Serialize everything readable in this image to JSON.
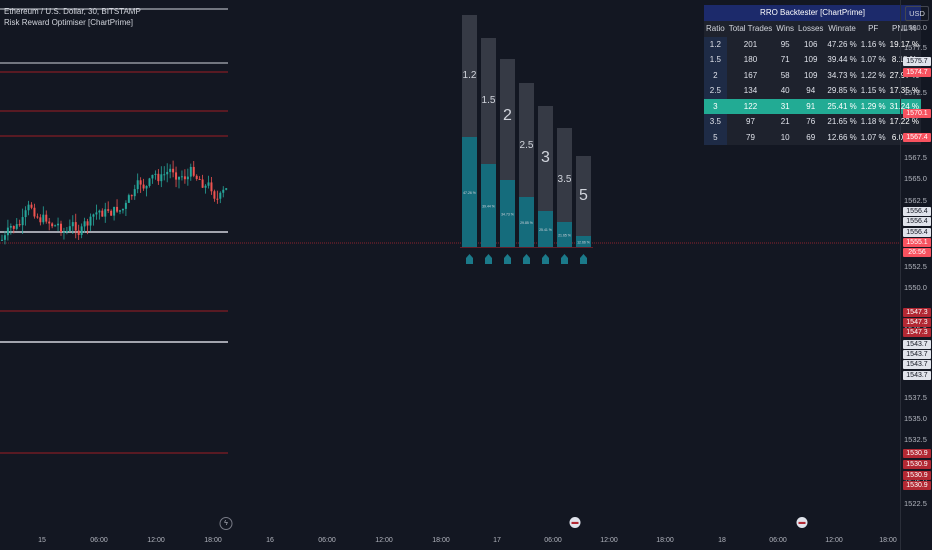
{
  "legend": {
    "symbol_line": "Ethereum / U.S. Dollar, 30, BITSTAMP",
    "indicator_line": "Risk Reward Optimiser [ChartPrime]"
  },
  "axis": {
    "currency": "USD",
    "price_ticks": [
      "1580.0",
      "1577.5",
      "1572.5",
      "1567.5",
      "1565.0",
      "1562.5",
      "1560.0",
      "1552.5",
      "1550.0",
      "1545.0",
      "1537.5",
      "1535.0",
      "1532.5",
      "1525.0",
      "1522.5"
    ],
    "price_labels": [
      {
        "text": "1575.7",
        "bg": "#e0e3eb",
        "fg": "#131722"
      },
      {
        "text": "1574.7",
        "bg": "#f7525f",
        "fg": "#ffffff"
      },
      {
        "text": "1570.1",
        "bg": "#f7525f",
        "fg": "#ffffff"
      },
      {
        "text": "1567.4",
        "bg": "#f7525f",
        "fg": "#ffffff"
      },
      {
        "text": "1556.4",
        "bg": "#e0e3eb",
        "fg": "#131722"
      },
      {
        "text": "1556.4",
        "bg": "#e0e3eb",
        "fg": "#131722"
      },
      {
        "text": "1556.4",
        "bg": "#e0e3eb",
        "fg": "#131722"
      },
      {
        "text": "1555.1",
        "bg": "#f7525f",
        "fg": "#ffffff"
      },
      {
        "text": "26:56",
        "bg": "#f7525f",
        "fg": "#ffffff"
      },
      {
        "text": "1547.3",
        "bg": "#b22833",
        "fg": "#ffffff"
      },
      {
        "text": "1547.3",
        "bg": "#b22833",
        "fg": "#ffffff"
      },
      {
        "text": "1547.3",
        "bg": "#b22833",
        "fg": "#ffffff"
      },
      {
        "text": "1543.7",
        "bg": "#e0e3eb",
        "fg": "#131722"
      },
      {
        "text": "1543.7",
        "bg": "#e0e3eb",
        "fg": "#131722"
      },
      {
        "text": "1543.7",
        "bg": "#e0e3eb",
        "fg": "#131722"
      },
      {
        "text": "1543.7",
        "bg": "#e0e3eb",
        "fg": "#131722"
      },
      {
        "text": "1530.9",
        "bg": "#b22833",
        "fg": "#ffffff"
      },
      {
        "text": "1530.9",
        "bg": "#b22833",
        "fg": "#ffffff"
      },
      {
        "text": "1530.9",
        "bg": "#b22833",
        "fg": "#ffffff"
      },
      {
        "text": "1530.9",
        "bg": "#b22833",
        "fg": "#ffffff"
      }
    ],
    "time_ticks": [
      "15",
      "06:00",
      "12:00",
      "18:00",
      "16",
      "06:00",
      "12:00",
      "18:00",
      "17",
      "06:00",
      "12:00",
      "18:00",
      "18",
      "06:00",
      "12:00",
      "18:00"
    ]
  },
  "table": {
    "title": "RRO Backtester [ChartPrime]",
    "headers": [
      "Ratio",
      "Total Trades",
      "Wins",
      "Losses",
      "Winrate",
      "PF",
      "PNL %"
    ],
    "rows": [
      [
        "1.2",
        "201",
        "95",
        "106",
        "47.26 %",
        "1.16 %",
        "19.17 %"
      ],
      [
        "1.5",
        "180",
        "71",
        "109",
        "39.44 %",
        "1.07 %",
        "8.18 %"
      ],
      [
        "2",
        "167",
        "58",
        "109",
        "34.73 %",
        "1.22 %",
        "27.97 %"
      ],
      [
        "2.5",
        "134",
        "40",
        "94",
        "29.85 %",
        "1.15 %",
        "17.35 %"
      ],
      [
        "3",
        "122",
        "31",
        "91",
        "25.41 %",
        "1.29 %",
        "31.24 %"
      ],
      [
        "3.5",
        "97",
        "21",
        "76",
        "21.65 %",
        "1.18 %",
        "17.22 %"
      ],
      [
        "5",
        "79",
        "10",
        "69",
        "12.66 %",
        "1.07 %",
        "6.03 %"
      ]
    ],
    "best_row": 4
  },
  "bars": {
    "ratios": [
      "1.2",
      "1.5",
      "2",
      "2.5",
      "3",
      "3.5",
      "5"
    ],
    "winrates": [
      "47.26 %",
      "39.44 %",
      "34.73 %",
      "29.85 %",
      "25.41 %",
      "21.65 %",
      "12.66 %"
    ],
    "colors": {
      "trades": "#363a45",
      "wins": "#156c7c",
      "marker": "#1b7a8a"
    }
  },
  "colors": {
    "up": "#26a69a",
    "down": "#ef5350",
    "bg": "#131722",
    "red_line": "#9c1c24",
    "white_line": "#d1d4dc"
  }
}
